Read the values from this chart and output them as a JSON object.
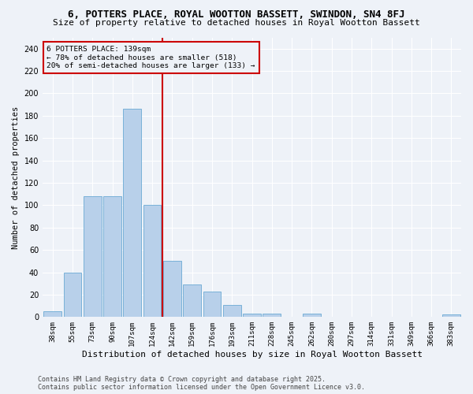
{
  "title": "6, POTTERS PLACE, ROYAL WOOTTON BASSETT, SWINDON, SN4 8FJ",
  "subtitle": "Size of property relative to detached houses in Royal Wootton Bassett",
  "xlabel": "Distribution of detached houses by size in Royal Wootton Bassett",
  "ylabel": "Number of detached properties",
  "bar_labels": [
    "38sqm",
    "55sqm",
    "73sqm",
    "90sqm",
    "107sqm",
    "124sqm",
    "142sqm",
    "159sqm",
    "176sqm",
    "193sqm",
    "211sqm",
    "228sqm",
    "245sqm",
    "262sqm",
    "280sqm",
    "297sqm",
    "314sqm",
    "331sqm",
    "349sqm",
    "366sqm",
    "383sqm"
  ],
  "bar_values": [
    5,
    40,
    108,
    108,
    186,
    100,
    50,
    29,
    23,
    11,
    3,
    3,
    0,
    3,
    0,
    0,
    0,
    0,
    0,
    0,
    2
  ],
  "bar_color": "#b8d0ea",
  "bar_edge_color": "#6aaad4",
  "vline_index": 6,
  "annotation_line1": "6 POTTERS PLACE: 139sqm",
  "annotation_line2": "← 78% of detached houses are smaller (518)",
  "annotation_line3": "20% of semi-detached houses are larger (133) →",
  "vline_color": "#cc0000",
  "annotation_box_edgecolor": "#cc0000",
  "ylim": [
    0,
    250
  ],
  "yticks": [
    0,
    20,
    40,
    60,
    80,
    100,
    120,
    140,
    160,
    180,
    200,
    220,
    240
  ],
  "background_color": "#eef2f8",
  "grid_color": "#ffffff",
  "footnote_line1": "Contains HM Land Registry data © Crown copyright and database right 2025.",
  "footnote_line2": "Contains public sector information licensed under the Open Government Licence v3.0.",
  "title_fontsize": 9,
  "subtitle_fontsize": 8,
  "xlabel_fontsize": 8,
  "ylabel_fontsize": 7.5,
  "tick_fontsize": 6.5,
  "footnote_fontsize": 6
}
